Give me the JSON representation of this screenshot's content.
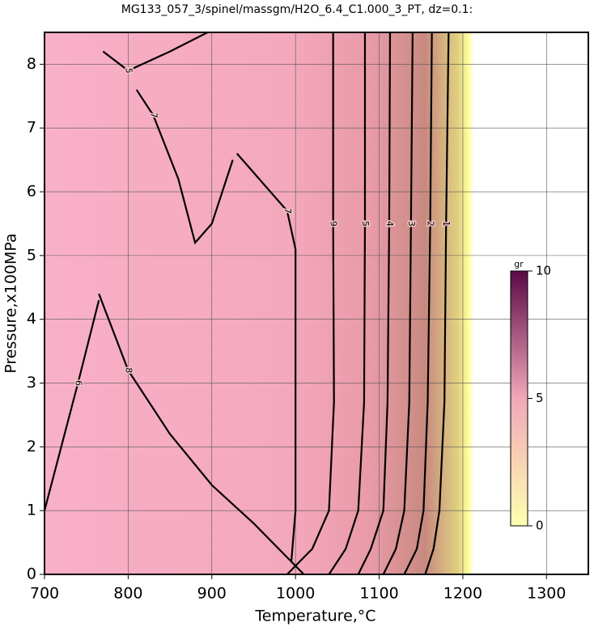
{
  "chart_data": {
    "type": "contour",
    "title": "MG133_057_3/spinel/massgm/H2O_6.4_C1.000_3_PT, dz=0.1:",
    "x_label": "Temperature,°C",
    "y_label": "Pressure,x100MPa",
    "xlim": [
      700,
      1350
    ],
    "xticks": [
      700,
      800,
      900,
      1000,
      1100,
      1200,
      1300
    ],
    "ylim": [
      0,
      8.5
    ],
    "yticks": [
      0,
      1,
      2,
      3,
      4,
      5,
      6,
      7,
      8
    ],
    "grid": true,
    "line_color": "#000000",
    "contours": [
      {
        "level": 9,
        "x": [
          1045,
          1045,
          1046,
          1040,
          1020,
          990
        ],
        "y": [
          8.5,
          5.5,
          2.7,
          1,
          0.4,
          0
        ]
      },
      {
        "level": 5,
        "x": [
          1083,
          1083,
          1082,
          1075,
          1060,
          1040
        ],
        "y": [
          8.5,
          5.5,
          2.7,
          1,
          0.4,
          0
        ]
      },
      {
        "level": 4,
        "x": [
          1113,
          1112,
          1110,
          1105,
          1090,
          1075
        ],
        "y": [
          8.5,
          5.5,
          2.7,
          1,
          0.4,
          0
        ]
      },
      {
        "level": 3,
        "x": [
          1140,
          1138,
          1136,
          1130,
          1120,
          1105
        ],
        "y": [
          8.5,
          5.5,
          2.7,
          1,
          0.4,
          0
        ]
      },
      {
        "level": 2,
        "x": [
          1163,
          1161,
          1158,
          1153,
          1145,
          1130
        ],
        "y": [
          8.5,
          5.5,
          2.7,
          1,
          0.4,
          0
        ]
      },
      {
        "level": 1,
        "x": [
          1183,
          1180,
          1178,
          1172,
          1165,
          1155
        ],
        "y": [
          8.5,
          5.5,
          2.7,
          1,
          0.4,
          0
        ]
      },
      {
        "level": 7,
        "x": [
          930,
          990,
          1000,
          1000,
          1000,
          995
        ],
        "y": [
          6.6,
          5.7,
          5.1,
          4.4,
          1,
          0.2
        ]
      },
      {
        "level": 8,
        "x": [
          765,
          800,
          850,
          900,
          950,
          1010
        ],
        "y": [
          4.4,
          3.2,
          2.2,
          1.4,
          0.8,
          0
        ]
      },
      {
        "level": 6,
        "x": [
          700,
          740,
          765
        ],
        "y": [
          1,
          3,
          4.3
        ]
      },
      {
        "level": 5,
        "x": [
          770,
          800,
          850,
          880,
          895
        ],
        "y": [
          8.2,
          7.9,
          8.2,
          8.4,
          8.5
        ]
      },
      {
        "level": 7,
        "x": [
          810,
          830,
          860,
          880,
          900,
          925
        ],
        "y": [
          7.6,
          7.2,
          6.2,
          5.2,
          5.5,
          6.5
        ]
      }
    ],
    "colorbar": {
      "label": "gr",
      "lim": [
        0,
        10
      ],
      "ticks": [
        0,
        5,
        10
      ],
      "colors": [
        "#ffffb0",
        "#f0a8b8",
        "#5a0a48"
      ]
    }
  }
}
